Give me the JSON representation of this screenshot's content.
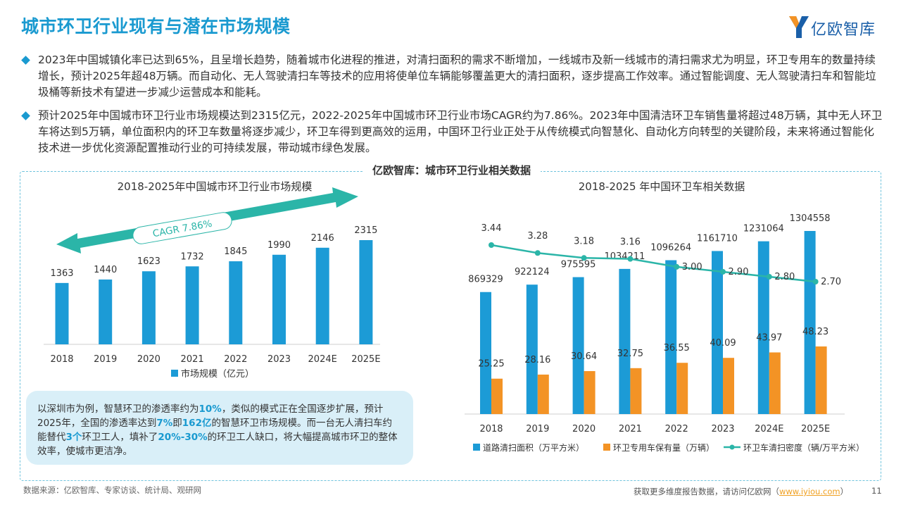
{
  "header": {
    "title": "城市环卫行业现有与潜在市场规模",
    "logo_text": "亿欧智库"
  },
  "bullets": [
    "2023年中国城镇化率已达到65%，且呈增长趋势，随着城市化进程的推进，对清扫面积的需求不断增加，一线城市及新一线城市的清扫需求尤为明显，环卫专用车的数量持续增长，预计2025年超48万辆。而自动化、无人驾驶清扫车等技术的应用将使单位车辆能够覆盖更大的清扫面积，逐步提高工作效率。通过智能调度、无人驾驶清扫车和智能垃圾桶等新技术有望进一步减少运营成本和能耗。",
    "预计2025年中国城市环卫行业市场规模达到2315亿元，2022-2025年中国城市环卫行业市场CAGR约为7.86%。2023年中国清洁环卫车销售量将超过48万辆，其中无人环卫车将达到5万辆，单位面积内的环卫车数量将逐步减少，环卫车得到更高效的运用，中国环卫行业正处于从传统模式向智慧化、自动化方向转型的关键阶段，未来将通过智能化技术进一步优化资源配置推动行业的可持续发展，带动城市绿色发展。"
  ],
  "panel_title": "亿欧智库：城市环卫行业相关数据",
  "note": {
    "p1": "以深圳市为例，智慧环卫的渗透率约为",
    "h1": "10%",
    "p2": "，类似的模式正在全国逐步扩展，预计2025年，全国的渗透率达到",
    "h2": "7%",
    "p3": "即",
    "h3": "162亿",
    "p4": "的智慧环卫市场规模。而一台无人清扫车约能替代",
    "h4": "3个",
    "p5": "环卫工人，填补了",
    "h5": "20%-30%",
    "p6": "的环卫工人缺口，将大幅提高城市环卫的整体效率，使城市更洁净。"
  },
  "footer": {
    "source": "数据来源：亿欧智库、专家访谈、统计局、观研网",
    "more_prefix": "获取更多维度报告数据，请访问亿欧网（",
    "more_link": "www.iyiou.com",
    "more_suffix": "）",
    "page": "11"
  },
  "colors": {
    "blue": "#1c9bd6",
    "orange": "#f39325",
    "teal": "#2bb5a8",
    "title_blue": "#1a9ad0"
  },
  "chart_data": [
    {
      "type": "bar",
      "title": "2018-2025年中国城市环卫行业市场规模",
      "categories": [
        "2018",
        "2019",
        "2020",
        "2021",
        "2022",
        "2023",
        "2024E",
        "2025E"
      ],
      "series": [
        {
          "name": "市场规模（亿元）",
          "values": [
            1363,
            1440,
            1623,
            1732,
            1845,
            1990,
            2146,
            2315
          ]
        }
      ],
      "annotation": "CAGR 7.86%",
      "legend": "bottom",
      "grid": false
    },
    {
      "type": "bar",
      "title": "2018-2025 年中国环卫车相关数据",
      "categories": [
        "2018",
        "2019",
        "2020",
        "2021",
        "2022",
        "2023",
        "2024E",
        "2025E"
      ],
      "series": [
        {
          "name": "道路清扫面积（万平方米）",
          "type": "bar",
          "values": [
            869329,
            922124,
            975595,
            1034211,
            1096264,
            1161710,
            1231064,
            1304558
          ]
        },
        {
          "name": "环卫专用车保有量（万辆）",
          "type": "bar",
          "values": [
            25.25,
            28.16,
            30.64,
            32.75,
            36.55,
            40.09,
            43.97,
            48.23
          ]
        },
        {
          "name": "环卫车清扫密度（辆/万平方米）",
          "type": "line",
          "values": [
            3.44,
            3.28,
            3.18,
            3.16,
            3.0,
            2.9,
            2.8,
            2.7
          ],
          "labels": [
            "3.44",
            "3.28",
            "3.18",
            "3.16",
            "3.00",
            "2.90",
            "2.80",
            "2.70"
          ]
        }
      ],
      "legend": "bottom",
      "grid": false
    }
  ]
}
